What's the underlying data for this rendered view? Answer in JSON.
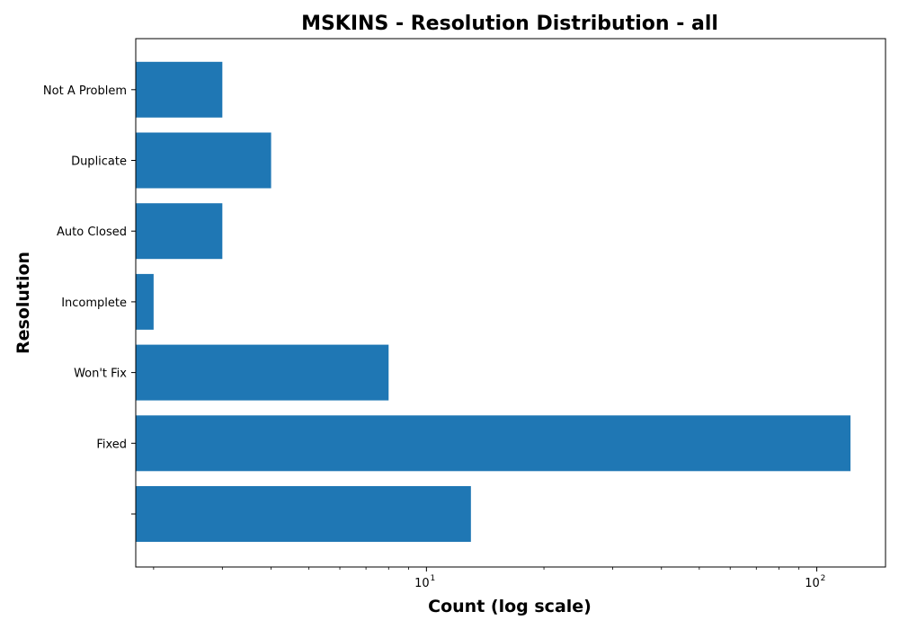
{
  "chart_data": {
    "type": "bar",
    "orientation": "horizontal",
    "title": "MSKINS - Resolution Distribution - all",
    "xlabel": "Count (log scale)",
    "ylabel": "Resolution",
    "xscale": "log",
    "xlim": [
      1.8,
      150
    ],
    "x_ticks": [
      10,
      100
    ],
    "x_tick_labels": [
      {
        "base": "10",
        "exp": "1"
      },
      {
        "base": "10",
        "exp": "2"
      }
    ],
    "grid": false,
    "bar_color": "#1f77b4",
    "categories": [
      "",
      "Fixed",
      "Won't Fix",
      "Incomplete",
      "Auto Closed",
      "Duplicate",
      "Not A Problem"
    ],
    "values": [
      13,
      122,
      8,
      2,
      3,
      4,
      3
    ]
  }
}
